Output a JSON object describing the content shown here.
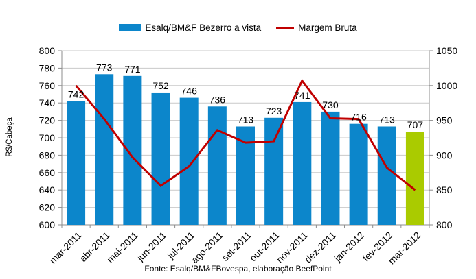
{
  "legend": {
    "bar_label": "Esalq/BM&F Bezerro a vista",
    "line_label": "Margem Bruta"
  },
  "footer": "Fonte: Esalq/BM&FBovespa, elaboração BeefPoint",
  "colors": {
    "bar": "#0C86CB",
    "bar_highlight": "#AACB00",
    "line": "#C00000",
    "grid": "#C9C9C9",
    "axis": "#8C8C8C",
    "text": "#000000"
  },
  "chart_data": {
    "type": "bar",
    "subtype": "bar+line combo",
    "categories": [
      "mar-2011",
      "abr-2011",
      "mai-2011",
      "jun-2011",
      "jul-2011",
      "ago-2011",
      "set-2011",
      "out-2011",
      "nov-2011",
      "dez-2011",
      "jan-2012",
      "fev-2012",
      "mar-2012"
    ],
    "series": [
      {
        "name": "Esalq/BM&F Bezerro a vista",
        "type": "bar",
        "axis": "left",
        "color": "#0C86CB",
        "highlight_last_color": "#AACB00",
        "values": [
          742,
          773,
          771,
          752,
          746,
          736,
          713,
          723,
          741,
          730,
          716,
          713,
          707
        ]
      },
      {
        "name": "Margem Bruta",
        "type": "line",
        "axis": "right",
        "color": "#C00000",
        "values": [
          1000,
          952,
          897,
          856,
          884,
          936,
          918,
          920,
          1007,
          953,
          952,
          882,
          850
        ]
      }
    ],
    "left_axis": {
      "label": "R$/Cabeça",
      "min": 600,
      "max": 800,
      "step": 20
    },
    "right_axis": {
      "label": "",
      "min": 800,
      "max": 1050,
      "step": 50
    },
    "grid": true,
    "data_labels": true,
    "legend_position": "top"
  }
}
